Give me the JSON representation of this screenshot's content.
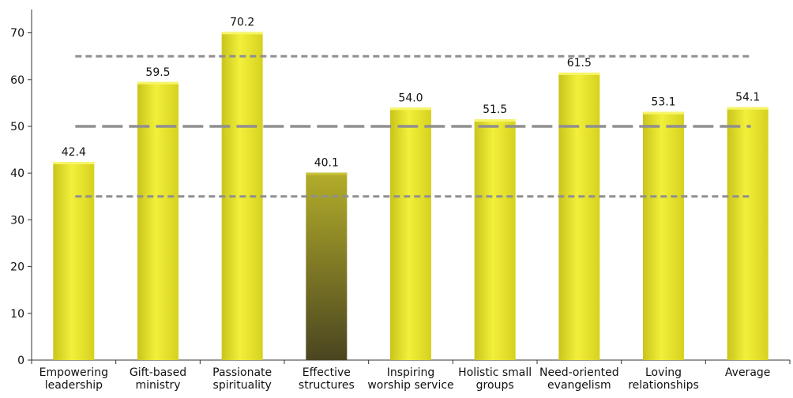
{
  "chart_data": {
    "type": "bar",
    "title": "",
    "xlabel": "",
    "ylabel": "",
    "ylim": [
      0,
      75
    ],
    "yticks": [
      0,
      10,
      20,
      30,
      40,
      50,
      60,
      70
    ],
    "grid": false,
    "categories": [
      [
        "Empowering",
        "leadership"
      ],
      [
        "Gift-based",
        "ministry"
      ],
      [
        "Passionate",
        "spirituality"
      ],
      [
        "Effective",
        "structures"
      ],
      [
        "Inspiring",
        "worship service"
      ],
      [
        "Holistic small",
        "groups"
      ],
      [
        "Need-oriented",
        "evangelism"
      ],
      [
        "Loving",
        "relationships"
      ],
      [
        "Average"
      ]
    ],
    "values": [
      42.4,
      59.5,
      70.2,
      40.1,
      54.0,
      51.5,
      61.5,
      53.1,
      54.1
    ],
    "value_labels": [
      "42.4",
      "59.5",
      "70.2",
      "40.1",
      "54.0",
      "51.5",
      "61.5",
      "53.1",
      "54.1"
    ],
    "highlighted_category_index": 3,
    "reference_lines": [
      {
        "value": 65,
        "style": "short-dash"
      },
      {
        "value": 50,
        "style": "long-dash"
      },
      {
        "value": 35,
        "style": "short-dash"
      }
    ],
    "colors": {
      "bar_light": "#f2f03a",
      "bar_mid": "#e0dc22",
      "bar_dark": "#c9c41c",
      "highlight_top": "#b3ad2a",
      "highlight_bottom": "#4a4520",
      "reference_line": "#8f8f8f",
      "axis": "#333333"
    }
  }
}
